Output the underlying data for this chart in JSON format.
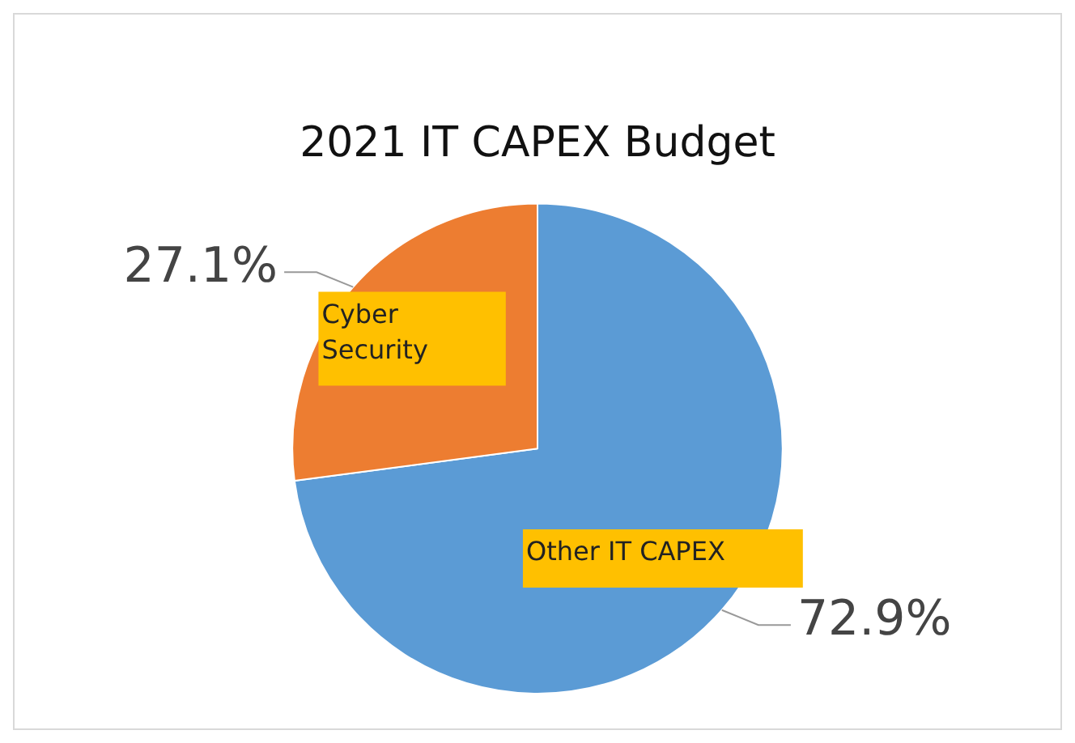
{
  "chart_data": {
    "type": "pie",
    "title": "2021 IT CAPEX Budget",
    "categories": [
      "Other IT CAPEX",
      "Cyber Security"
    ],
    "values": [
      72.9,
      27.1
    ],
    "colors": [
      "#5b9bd5",
      "#ed7d31"
    ],
    "value_labels": [
      "72.9%",
      "27.1%"
    ],
    "legend": false
  }
}
